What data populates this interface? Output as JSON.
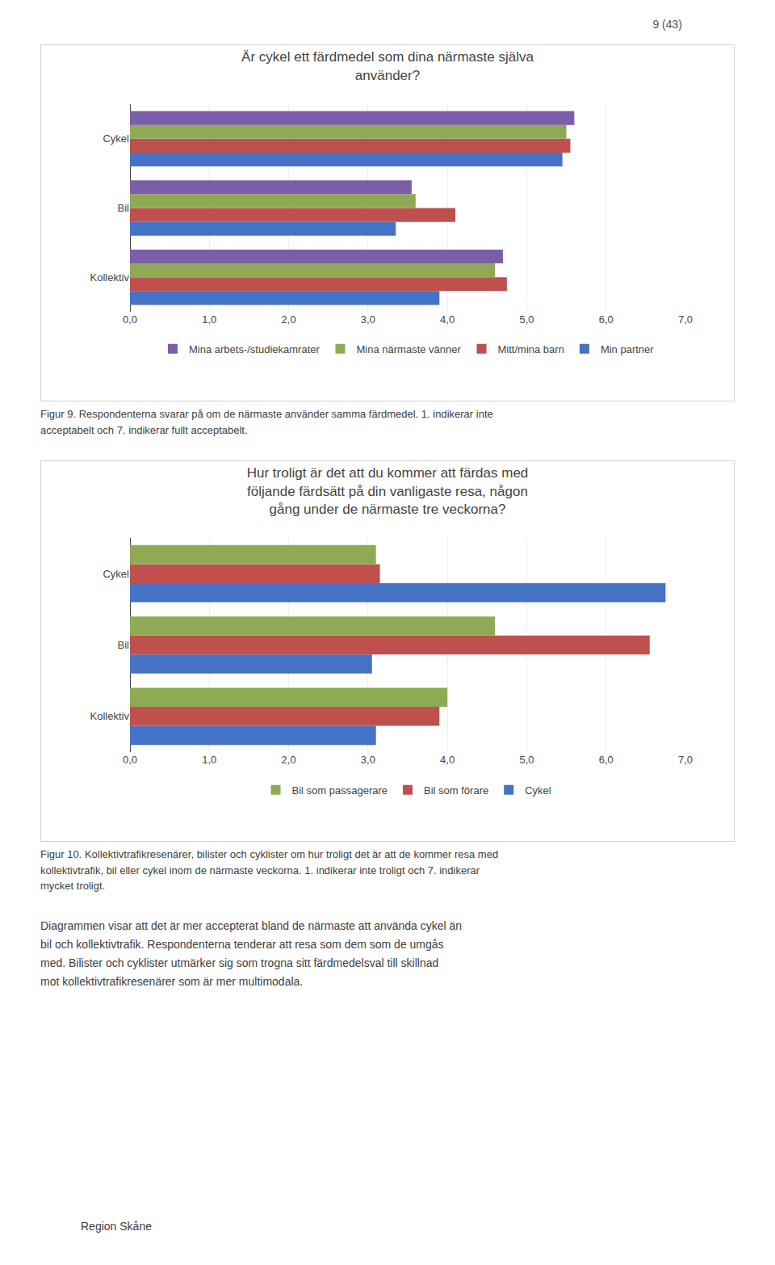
{
  "chart_data": [
    {
      "type": "bar",
      "orientation": "horizontal",
      "title": "Är cykel ett färdmedel som dina närmaste själva\nanvänder?",
      "categories": [
        "Kollektiv",
        "Bil",
        "Cykel"
      ],
      "series": [
        {
          "name": "Min partner",
          "color": "#4472c4",
          "values": [
            3.9,
            3.35,
            5.45
          ]
        },
        {
          "name": "Mitt/mina barn",
          "color": "#c0504d",
          "values": [
            4.75,
            4.1,
            5.55
          ]
        },
        {
          "name": "Mina närmaste vänner",
          "color": "#8faa54",
          "values": [
            4.6,
            3.6,
            5.5
          ]
        },
        {
          "name": "Mina arbets-/studiekamrater",
          "color": "#7b5ea7",
          "values": [
            4.7,
            3.55,
            5.6
          ]
        }
      ],
      "xlim": [
        0,
        7.0
      ],
      "xticks": [
        {
          "value": 0.0,
          "label": "0,0"
        },
        {
          "value": 1.0,
          "label": "1,0"
        },
        {
          "value": 2.0,
          "label": "2,0"
        },
        {
          "value": 3.0,
          "label": "3,0"
        },
        {
          "value": 4.0,
          "label": "4,0"
        },
        {
          "value": 5.0,
          "label": "5,0"
        },
        {
          "value": 6.0,
          "label": "6,0"
        },
        {
          "value": 7.0,
          "label": "7,0"
        }
      ],
      "grid": true,
      "legend": "bottom",
      "annotations": [
        "9 (43)",
        "Figur 9. Respondenterna svarar på om de närmaste använder samma färdmedel. 1. indikerar inte\nacceptabelt och 7. indikerar fullt acceptabelt."
      ]
    },
    {
      "type": "bar",
      "orientation": "horizontal",
      "title": "Hur troligt är det att du kommer att färdas med\nföljande färdsätt på din vanligaste resa, någon\ngång under de närmaste tre veckorna?",
      "categories": [
        "Kollektiv",
        "Bil",
        "Cykel"
      ],
      "series": [
        {
          "name": "Cykel",
          "color": "#4472c4",
          "values": [
            3.1,
            3.05,
            6.75
          ]
        },
        {
          "name": "Bil som förare",
          "color": "#c0504d",
          "values": [
            3.9,
            6.55,
            3.15
          ]
        },
        {
          "name": "Bil som passagerare",
          "color": "#8faa54",
          "values": [
            4.0,
            4.6,
            3.1
          ]
        }
      ],
      "xlim": [
        0,
        7.0
      ],
      "xticks": [
        {
          "value": 0.0,
          "label": "0,0"
        },
        {
          "value": 1.0,
          "label": "1,0"
        },
        {
          "value": 2.0,
          "label": "2,0"
        },
        {
          "value": 3.0,
          "label": "3,0"
        },
        {
          "value": 4.0,
          "label": "4,0"
        },
        {
          "value": 5.0,
          "label": "5,0"
        },
        {
          "value": 6.0,
          "label": "6,0"
        },
        {
          "value": 7.0,
          "label": "7,0"
        }
      ],
      "grid": true,
      "legend": "bottom",
      "annotations": [
        "Figur 10. Kollektivtrafikresenärer, bilister och cyklister om hur troligt det är att de kommer resa med\nkollektivtrafik, bil eller cykel inom de närmaste veckorna. 1. indikerar inte troligt och 7. indikerar\nmycket troligt.",
        "Diagrammen visar att det är mer accepterat bland de närmaste att använda cykel än\nbil och kollektivtrafik. Respondenterna tenderar att resa som dem som de umgås\nmed. Bilister och cyklister utmärker sig som trogna sitt färdmedelsval till skillnad\nmot kollektivtrafikresenärer som är mer multimodala.",
        "Region Skåne"
      ]
    }
  ]
}
